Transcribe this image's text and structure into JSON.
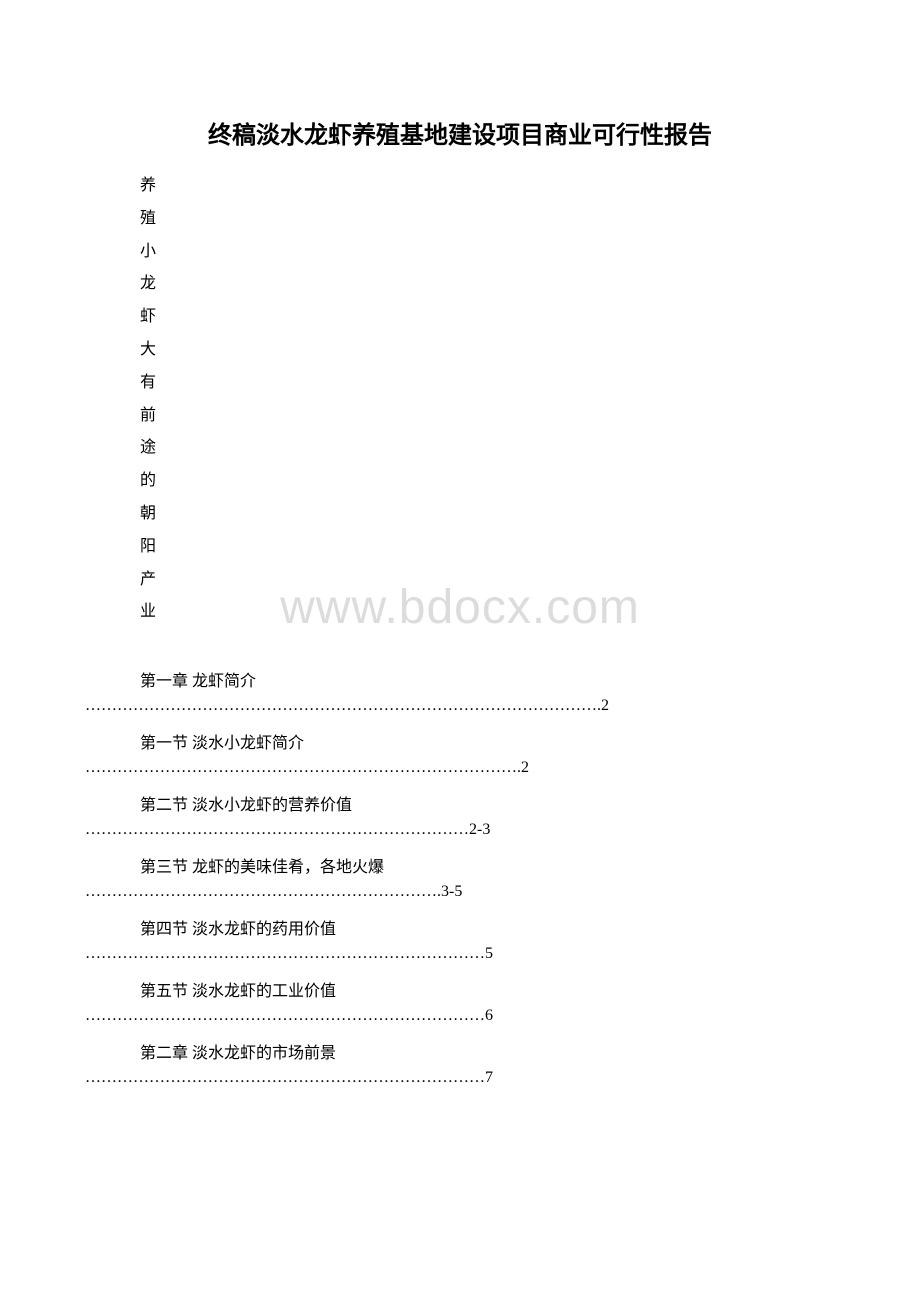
{
  "title": "终稿淡水龙虾养殖基地建设项目商业可行性报告",
  "vertical_text": [
    "养",
    "殖",
    "小",
    "龙",
    "虾",
    "大",
    "有",
    "前",
    "途",
    "的",
    "朝",
    "阳",
    "产",
    "业"
  ],
  "watermark": "www.bdocx.com",
  "toc": [
    {
      "label": "第一章 龙虾简介",
      "dots": "…………………………………………………………………………………….2"
    },
    {
      "label": "第一节 淡水小龙虾简介",
      "dots": "……………………………………………………………………….2"
    },
    {
      "label": "第二节 淡水小龙虾的营养价值",
      "dots": "………………………………………………………………2-3"
    },
    {
      "label": "第三节 龙虾的美味佳肴，各地火爆",
      "dots": "………………………………………………………….3-5"
    },
    {
      "label": "第四节 淡水龙虾的药用价值",
      "dots": "…………………………………………………………………5"
    },
    {
      "label": "第五节 淡水龙虾的工业价值",
      "dots": "…………………………………………………………………6"
    },
    {
      "label": "第二章 淡水龙虾的市场前景",
      "dots": "…………………………………………………………………7"
    }
  ]
}
